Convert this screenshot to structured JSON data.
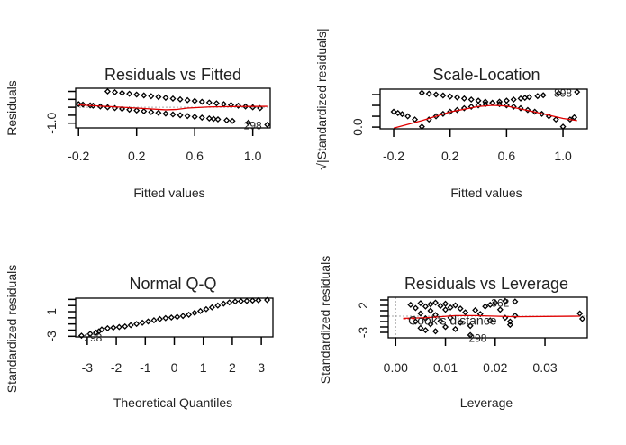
{
  "chart_data": [
    {
      "type": "scatter",
      "title": "Residuals vs Fitted",
      "xlabel": "Fitted values",
      "ylabel": "Residuals",
      "xlim": [
        -0.22,
        1.12
      ],
      "ylim": [
        -1.3,
        1.2
      ],
      "xticks": [
        {
          "value": -0.2,
          "label": "-0.2"
        },
        {
          "value": 0.2,
          "label": "0.2"
        },
        {
          "value": 0.6,
          "label": "0.6"
        },
        {
          "value": 1.0,
          "label": "1.0"
        }
      ],
      "yticks": [
        {
          "value": -1.0,
          "label": "-1.0"
        },
        {
          "value": -0.5,
          "label": ""
        },
        {
          "value": 0,
          "label": ""
        },
        {
          "value": 0.5,
          "label": ""
        },
        {
          "value": 1.0,
          "label": ""
        }
      ],
      "reference_line_y": 0,
      "points": [
        [
          0,
          1
        ],
        [
          0.05,
          0.95
        ],
        [
          0.1,
          0.9
        ],
        [
          0.15,
          0.85
        ],
        [
          0.2,
          0.8
        ],
        [
          0.25,
          0.75
        ],
        [
          0.3,
          0.7
        ],
        [
          0.35,
          0.65
        ],
        [
          0.4,
          0.6
        ],
        [
          0.45,
          0.55
        ],
        [
          0.5,
          0.5
        ],
        [
          0.55,
          0.45
        ],
        [
          0.6,
          0.4
        ],
        [
          0.65,
          0.35
        ],
        [
          0.7,
          0.3
        ],
        [
          0.75,
          0.25
        ],
        [
          0.8,
          0.2
        ],
        [
          0.85,
          0.15
        ],
        [
          0.9,
          0.1
        ],
        [
          0.95,
          0.05
        ],
        [
          1.0,
          0.0
        ],
        [
          1.05,
          -0.05
        ],
        [
          -0.2,
          0.2
        ],
        [
          -0.17,
          0.17
        ],
        [
          -0.12,
          0.12
        ],
        [
          -0.1,
          0.1
        ],
        [
          -0.05,
          0.05
        ],
        [
          0,
          0
        ],
        [
          0.05,
          -0.05
        ],
        [
          0.1,
          -0.1
        ],
        [
          0.15,
          -0.15
        ],
        [
          0.2,
          -0.2
        ],
        [
          0.25,
          -0.25
        ],
        [
          0.3,
          -0.3
        ],
        [
          0.35,
          -0.35
        ],
        [
          0.4,
          -0.4
        ],
        [
          0.45,
          -0.45
        ],
        [
          0.5,
          -0.5
        ],
        [
          0.55,
          -0.55
        ],
        [
          0.6,
          -0.6
        ],
        [
          0.65,
          -0.65
        ],
        [
          0.7,
          -0.7
        ],
        [
          0.73,
          -0.73
        ],
        [
          0.76,
          -0.76
        ],
        [
          0.82,
          -0.82
        ],
        [
          0.86,
          -0.86
        ],
        [
          0.97,
          -0.97
        ],
        [
          1.1,
          -1.1
        ]
      ],
      "smooth": [
        [
          -0.2,
          0.15
        ],
        [
          0,
          0.05
        ],
        [
          0.2,
          -0.05
        ],
        [
          0.4,
          -0.16
        ],
        [
          0.47,
          -0.14
        ],
        [
          0.55,
          -0.05
        ],
        [
          0.7,
          0.02
        ],
        [
          0.9,
          0.05
        ],
        [
          1.1,
          0.06
        ]
      ],
      "annotations": [
        {
          "label": "298",
          "x": 1.0,
          "y": -1.1
        }
      ],
      "colors": {
        "points": "#000000",
        "smooth": "#e00000",
        "reference": "#aaaaaa"
      }
    },
    {
      "type": "scatter",
      "title": "Scale-Location",
      "xlabel": "Fitted values",
      "ylabel": "√|Standardized residuals|",
      "xlim": [
        -0.296,
        1.172
      ],
      "ylim": [
        -0.08,
        1.75
      ],
      "xticks": [
        {
          "value": -0.2,
          "label": "-0.2"
        },
        {
          "value": 0.2,
          "label": "0.2"
        },
        {
          "value": 0.6,
          "label": "0.6"
        },
        {
          "value": 1.0,
          "label": "1.0"
        }
      ],
      "yticks": [
        {
          "value": 0,
          "label": "0.0"
        },
        {
          "value": 0.5,
          "label": ""
        },
        {
          "value": 1.0,
          "label": ""
        },
        {
          "value": 1.5,
          "label": ""
        }
      ],
      "points": [
        [
          0,
          1.58
        ],
        [
          0.05,
          1.54
        ],
        [
          0.1,
          1.5
        ],
        [
          0.15,
          1.46
        ],
        [
          0.2,
          1.41
        ],
        [
          0.25,
          1.37
        ],
        [
          0.3,
          1.32
        ],
        [
          0.35,
          1.27
        ],
        [
          0.4,
          1.22
        ],
        [
          0.45,
          1.17
        ],
        [
          0.5,
          1.12
        ],
        [
          0.55,
          1.06
        ],
        [
          0.6,
          1.0
        ],
        [
          0.65,
          0.94
        ],
        [
          0.7,
          0.87
        ],
        [
          0.75,
          0.79
        ],
        [
          0.8,
          0.71
        ],
        [
          0.85,
          0.61
        ],
        [
          0.9,
          0.5
        ],
        [
          0.95,
          0.35
        ],
        [
          1.0,
          0.02
        ],
        [
          1.05,
          0.35
        ],
        [
          1.08,
          0.45
        ],
        [
          -0.2,
          0.71
        ],
        [
          -0.17,
          0.65
        ],
        [
          -0.14,
          0.6
        ],
        [
          -0.1,
          0.5
        ],
        [
          -0.05,
          0.35
        ],
        [
          0,
          0.02
        ],
        [
          0.05,
          0.35
        ],
        [
          0.1,
          0.5
        ],
        [
          0.15,
          0.61
        ],
        [
          0.2,
          0.71
        ],
        [
          0.25,
          0.79
        ],
        [
          0.3,
          0.87
        ],
        [
          0.35,
          0.94
        ],
        [
          0.4,
          1.0
        ],
        [
          0.45,
          1.06
        ],
        [
          0.5,
          1.12
        ],
        [
          0.55,
          1.17
        ],
        [
          0.6,
          1.22
        ],
        [
          0.65,
          1.27
        ],
        [
          0.7,
          1.32
        ],
        [
          0.73,
          1.35
        ],
        [
          0.76,
          1.38
        ],
        [
          0.82,
          1.43
        ],
        [
          0.86,
          1.47
        ],
        [
          0.97,
          1.56
        ],
        [
          1.1,
          1.62
        ]
      ],
      "smooth": [
        [
          -0.2,
          -0.05
        ],
        [
          0,
          0.3
        ],
        [
          0.2,
          0.7
        ],
        [
          0.4,
          0.95
        ],
        [
          0.5,
          1.0
        ],
        [
          0.6,
          0.97
        ],
        [
          0.8,
          0.7
        ],
        [
          1.0,
          0.4
        ],
        [
          1.1,
          0.3
        ]
      ],
      "annotations": [
        {
          "label": "898",
          "x": 1.0,
          "y": 1.6
        }
      ],
      "colors": {
        "points": "#000000",
        "smooth": "#e00000"
      }
    },
    {
      "type": "scatter",
      "title": "Normal Q-Q",
      "xlabel": "Theoretical Quantiles",
      "ylabel": "Standardized residuals",
      "xlim": [
        -3.4,
        3.4
      ],
      "ylim": [
        -3.1,
        3.2
      ],
      "xticks": [
        {
          "value": -3,
          "label": "-3"
        },
        {
          "value": -2,
          "label": "-2"
        },
        {
          "value": -1,
          "label": "-1"
        },
        {
          "value": 0,
          "label": "0"
        },
        {
          "value": 1,
          "label": "1"
        },
        {
          "value": 2,
          "label": "2"
        },
        {
          "value": 3,
          "label": "3"
        }
      ],
      "yticks": [
        {
          "value": -3,
          "label": "-3"
        },
        {
          "value": -2,
          "label": ""
        },
        {
          "value": -1,
          "label": ""
        },
        {
          "value": 0,
          "label": ""
        },
        {
          "value": 1,
          "label": "1"
        },
        {
          "value": 2,
          "label": ""
        },
        {
          "value": 3,
          "label": ""
        }
      ],
      "points": [
        [
          -3.2,
          -2.9
        ],
        [
          -2.9,
          -2.6
        ],
        [
          -2.7,
          -2.4
        ],
        [
          -2.6,
          -2.2
        ],
        [
          -2.5,
          -1.9
        ],
        [
          -2.3,
          -1.7
        ],
        [
          -2.1,
          -1.6
        ],
        [
          -1.9,
          -1.5
        ],
        [
          -1.7,
          -1.4
        ],
        [
          -1.5,
          -1.2
        ],
        [
          -1.3,
          -1.0
        ],
        [
          -1.1,
          -0.8
        ],
        [
          -0.9,
          -0.6
        ],
        [
          -0.7,
          -0.4
        ],
        [
          -0.5,
          -0.2
        ],
        [
          -0.3,
          -0.05
        ],
        [
          -0.1,
          0.05
        ],
        [
          0.1,
          0.15
        ],
        [
          0.3,
          0.3
        ],
        [
          0.5,
          0.5
        ],
        [
          0.7,
          0.8
        ],
        [
          0.9,
          1.1
        ],
        [
          1.1,
          1.4
        ],
        [
          1.3,
          1.7
        ],
        [
          1.5,
          2.0
        ],
        [
          1.7,
          2.3
        ],
        [
          1.9,
          2.5
        ],
        [
          2.1,
          2.65
        ],
        [
          2.3,
          2.7
        ],
        [
          2.5,
          2.75
        ],
        [
          2.7,
          2.8
        ],
        [
          2.9,
          2.85
        ],
        [
          3.2,
          2.9
        ]
      ],
      "annotations": [
        {
          "label": "298",
          "x": -2.8,
          "y": -3.1
        }
      ],
      "colors": {
        "points": "#000000"
      }
    },
    {
      "type": "scatter",
      "title": "Residuals vs Leverage",
      "xlabel": "Leverage",
      "ylabel": "Standardized residuals",
      "xlim": [
        -0.0015,
        0.0385
      ],
      "ylim": [
        -4,
        3.5
      ],
      "xticks": [
        {
          "value": 0,
          "label": "0.00"
        },
        {
          "value": 0.01,
          "label": "0.01"
        },
        {
          "value": 0.02,
          "label": "0.02"
        },
        {
          "value": 0.03,
          "label": "0.03"
        }
      ],
      "yticks": [
        {
          "value": -3,
          "label": "-3"
        },
        {
          "value": -2,
          "label": ""
        },
        {
          "value": -1,
          "label": ""
        },
        {
          "value": 0,
          "label": ""
        },
        {
          "value": 1,
          "label": ""
        },
        {
          "value": 2,
          "label": "2"
        },
        {
          "value": 3,
          "label": ""
        }
      ],
      "reference_line_y": 0,
      "reference_line_x": 0,
      "points": [
        [
          0.003,
          2.1
        ],
        [
          0.004,
          1.5
        ],
        [
          0.004,
          -1
        ],
        [
          0.005,
          2.4
        ],
        [
          0.005,
          0.5
        ],
        [
          0.005,
          -2.2
        ],
        [
          0.006,
          1.8
        ],
        [
          0.006,
          -0.4
        ],
        [
          0.006,
          -2.6
        ],
        [
          0.007,
          2.2
        ],
        [
          0.007,
          1.0
        ],
        [
          0.007,
          -1.5
        ],
        [
          0.008,
          2.5
        ],
        [
          0.008,
          0.2
        ],
        [
          0.008,
          -2.8
        ],
        [
          0.009,
          1.9
        ],
        [
          0.009,
          -0.9
        ],
        [
          0.01,
          2.3
        ],
        [
          0.01,
          1.2
        ],
        [
          0.01,
          -2.0
        ],
        [
          0.011,
          1.6
        ],
        [
          0.011,
          -0.3
        ],
        [
          0.012,
          2.0
        ],
        [
          0.012,
          -2.4
        ],
        [
          0.013,
          1.4
        ],
        [
          0.013,
          -1.2
        ],
        [
          0.014,
          0.7
        ],
        [
          0.015,
          -1.8
        ],
        [
          0.015,
          -3.5
        ],
        [
          0.016,
          1.1
        ],
        [
          0.017,
          0.4
        ],
        [
          0.018,
          1.8
        ],
        [
          0.019,
          -0.8
        ],
        [
          0.019,
          2.1
        ],
        [
          0.02,
          2.5
        ],
        [
          0.021,
          1.2
        ],
        [
          0.022,
          2.8
        ],
        [
          0.022,
          -0.3
        ],
        [
          0.023,
          -1.0
        ],
        [
          0.023,
          -1.6
        ],
        [
          0.024,
          2.7
        ],
        [
          0.024,
          0.1
        ],
        [
          0.037,
          0.5
        ],
        [
          0.0375,
          -0.5
        ]
      ],
      "smooth": [
        [
          0.0015,
          -0.4
        ],
        [
          0.006,
          -0.3
        ],
        [
          0.012,
          0.1
        ],
        [
          0.016,
          0.1
        ],
        [
          0.024,
          -0.1
        ],
        [
          0.037,
          0.0
        ]
      ],
      "annotations": [
        {
          "label": "362",
          "x": 0.021,
          "y": 2.6
        },
        {
          "label": "298",
          "x": 0.0165,
          "y": -3.9
        }
      ],
      "legend": {
        "label": "Cook's distance"
      },
      "colors": {
        "points": "#000000",
        "smooth": "#e00000",
        "cook": "#e00000",
        "reference": "#aaaaaa"
      }
    }
  ]
}
